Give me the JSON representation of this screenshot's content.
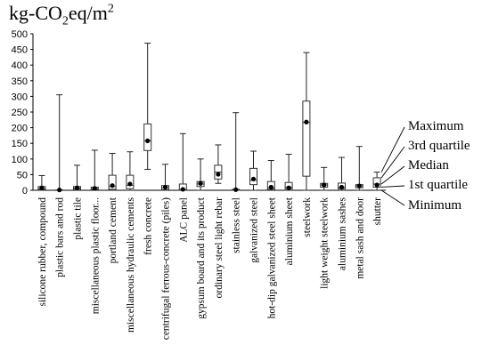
{
  "unit_title": {
    "base": "kg-CO",
    "sub": "2",
    "mid": "eq/m",
    "sup": "2"
  },
  "legend": {
    "items": [
      "Maximum",
      "3rd quartile",
      "Median",
      "1st quartile",
      "Minimum"
    ]
  },
  "chart_data": {
    "type": "box",
    "title": "",
    "ylabel": "kg-CO2eq/m2",
    "ylim": [
      0,
      500
    ],
    "yticks": [
      0,
      50,
      100,
      150,
      200,
      250,
      300,
      350,
      400,
      450,
      500
    ],
    "grid": false,
    "categories": [
      "silicone rubber, compound",
      "plastic bars and rod",
      "plastic tile",
      "miscellaneous plastic floor...",
      "portland cement",
      "miscellaneous hydraulic cements",
      "fresh concrete",
      "centrifugal ferrous-concrete (piles)",
      "ALC panel",
      "gypsum board and its product",
      "ordinary steel light rebar",
      "stainless steel",
      "galvanized steel",
      "hot-dip galvanized steel sheet",
      "aluminium sheet",
      "steelwork",
      "light weight steelwork",
      "aluminium sashes",
      "metal sash and door",
      "shutter"
    ],
    "boxes": [
      {
        "min": 0,
        "q1": 2,
        "median": 5,
        "q3": 12,
        "max": 47,
        "mean": 8
      },
      {
        "min": 0,
        "q1": 0,
        "median": 0,
        "q3": 1,
        "max": 305,
        "mean": 1
      },
      {
        "min": 0,
        "q1": 3,
        "median": 7,
        "q3": 12,
        "max": 80,
        "mean": 8
      },
      {
        "min": 0,
        "q1": 2,
        "median": 5,
        "q3": 10,
        "max": 128,
        "mean": 6
      },
      {
        "min": 0,
        "q1": 3,
        "median": 12,
        "q3": 48,
        "max": 118,
        "mean": 15
      },
      {
        "min": 0,
        "q1": 5,
        "median": 16,
        "q3": 48,
        "max": 123,
        "mean": 20
      },
      {
        "min": 67,
        "q1": 127,
        "median": 158,
        "q3": 212,
        "max": 470,
        "mean": 158
      },
      {
        "min": 0,
        "q1": 2,
        "median": 8,
        "q3": 15,
        "max": 83,
        "mean": 10
      },
      {
        "min": 0,
        "q1": 0,
        "median": 2,
        "q3": 20,
        "max": 181,
        "mean": 3
      },
      {
        "min": 0,
        "q1": 12,
        "median": 20,
        "q3": 28,
        "max": 100,
        "mean": 22
      },
      {
        "min": 22,
        "q1": 36,
        "median": 58,
        "q3": 80,
        "max": 145,
        "mean": 51
      },
      {
        "min": 0,
        "q1": 0,
        "median": 1,
        "q3": 3,
        "max": 248,
        "mean": 2
      },
      {
        "min": 0,
        "q1": 18,
        "median": 32,
        "q3": 70,
        "max": 125,
        "mean": 36
      },
      {
        "min": 0,
        "q1": 3,
        "median": 8,
        "q3": 28,
        "max": 95,
        "mean": 10
      },
      {
        "min": 0,
        "q1": 4,
        "median": 10,
        "q3": 25,
        "max": 115,
        "mean": 8
      },
      {
        "min": 0,
        "q1": 45,
        "median": 217,
        "q3": 285,
        "max": 440,
        "mean": 218
      },
      {
        "min": 0,
        "q1": 10,
        "median": 17,
        "q3": 22,
        "max": 73,
        "mean": 17
      },
      {
        "min": 0,
        "q1": 4,
        "median": 10,
        "q3": 23,
        "max": 105,
        "mean": 10
      },
      {
        "min": 0,
        "q1": 8,
        "median": 14,
        "q3": 18,
        "max": 140,
        "mean": 14
      },
      {
        "min": 0,
        "q1": 10,
        "median": 20,
        "q3": 40,
        "max": 58,
        "mean": 17
      }
    ]
  }
}
